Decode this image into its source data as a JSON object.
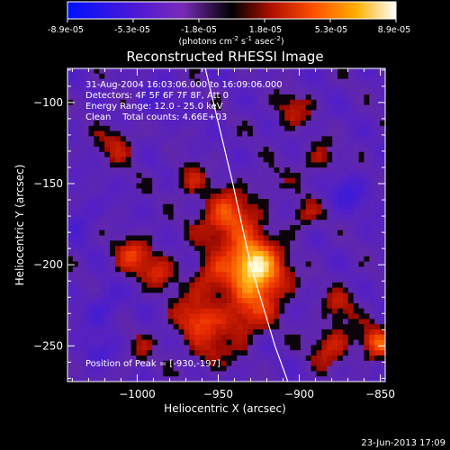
{
  "colorbar": {
    "ticks": [
      "-8.9e-05",
      "-5.3e-05",
      "-1.8e-05",
      "1.8e-05",
      "5.3e-05",
      "8.9e-05"
    ],
    "units_main": "(photons cm",
    "units_sup1": "-2",
    "units_mid": " s",
    "units_sup2": "-1",
    "units_end": " asec",
    "units_sup3": "-2",
    "units_close": ")"
  },
  "chart_data": {
    "type": "heatmap",
    "title": "Reconstructed RHESSI Image",
    "xlabel": "Heliocentric X (arcsec)",
    "ylabel": "Heliocentric Y (arcsec)",
    "xlim": [
      -1043,
      -847
    ],
    "ylim": [
      -272,
      -79
    ],
    "value_range": [
      -8.9e-05,
      8.9e-05
    ],
    "x_ticks": [
      {
        "value": -1000,
        "label": "−1000"
      },
      {
        "value": -950,
        "label": "−950"
      },
      {
        "value": -900,
        "label": "−900"
      },
      {
        "value": -850,
        "label": "−850"
      }
    ],
    "y_ticks": [
      {
        "value": -100,
        "label": "−100"
      },
      {
        "value": -150,
        "label": "−150"
      },
      {
        "value": -200,
        "label": "−200"
      },
      {
        "value": -250,
        "label": "−250"
      }
    ],
    "limb": [
      [
        -958,
        -79
      ],
      [
        -941,
        -150
      ],
      [
        -930,
        -200
      ],
      [
        -915,
        -250
      ],
      [
        -907,
        -272
      ]
    ],
    "grid": "off",
    "peak_position": [
      -930,
      -197
    ],
    "sources": [
      {
        "x": -930,
        "y": -197,
        "amp": 8.9e-05,
        "r": 10
      },
      {
        "x": -945,
        "y": -172,
        "amp": 6.3e-05,
        "r": 12
      },
      {
        "x": -920,
        "y": -210,
        "amp": 6e-05,
        "r": 11
      },
      {
        "x": -965,
        "y": -235,
        "amp": 5e-05,
        "r": 10
      },
      {
        "x": -935,
        "y": -232,
        "amp": 5.2e-05,
        "r": 11
      },
      {
        "x": -955,
        "y": -210,
        "amp": 4.3e-05,
        "r": 9
      },
      {
        "x": -1002,
        "y": -195,
        "amp": 4.6e-05,
        "r": 9
      },
      {
        "x": -1012,
        "y": -125,
        "amp": 3.2e-05,
        "r": 9
      },
      {
        "x": -985,
        "y": -205,
        "amp": 3.2e-05,
        "r": 8
      },
      {
        "x": -905,
        "y": -105,
        "amp": 3.4e-05,
        "r": 8
      },
      {
        "x": -880,
        "y": -250,
        "amp": 4.2e-05,
        "r": 9
      },
      {
        "x": -852,
        "y": -248,
        "amp": 6e-05,
        "r": 7
      },
      {
        "x": -888,
        "y": -135,
        "amp": 3e-05,
        "r": 8
      },
      {
        "x": -898,
        "y": -170,
        "amp": 3e-05,
        "r": 8
      },
      {
        "x": -875,
        "y": -225,
        "amp": 3e-05,
        "r": 8
      },
      {
        "x": -955,
        "y": -255,
        "amp": 3e-05,
        "r": 8
      },
      {
        "x": -1000,
        "y": -255,
        "amp": 2e-05,
        "r": 8
      },
      {
        "x": -968,
        "y": -148,
        "amp": 3.6e-05,
        "r": 7
      },
      {
        "x": -920,
        "y": -150,
        "amp": 2.2e-05,
        "r": 7
      },
      {
        "x": -1020,
        "y": -225,
        "amp": -3e-05,
        "r": 8
      },
      {
        "x": -1035,
        "y": -170,
        "amp": -2.2e-05,
        "r": 8
      },
      {
        "x": -870,
        "y": -155,
        "amp": -3e-05,
        "r": 9
      },
      {
        "x": -990,
        "y": -100,
        "amp": -2.4e-05,
        "r": 8
      },
      {
        "x": -1025,
        "y": -255,
        "amp": -2.6e-05,
        "r": 7
      }
    ]
  },
  "info": {
    "line1": "31-Aug-2004 16:03:06.000 to 16:09:06.000",
    "line2": "Detectors: 4F 5F 6F 7F 8F, Att 0",
    "line3": "Energy Range: 12.0 - 25.0 keV",
    "line4": "Clean    Total counts: 4.66E+03"
  },
  "peak_label": "Position of Peak = [-930,-197]",
  "footer_date": "23-Jun-2013 17:09",
  "colors": {
    "background": "#000000",
    "limb": "#ffffff",
    "text": "#ffffff"
  }
}
